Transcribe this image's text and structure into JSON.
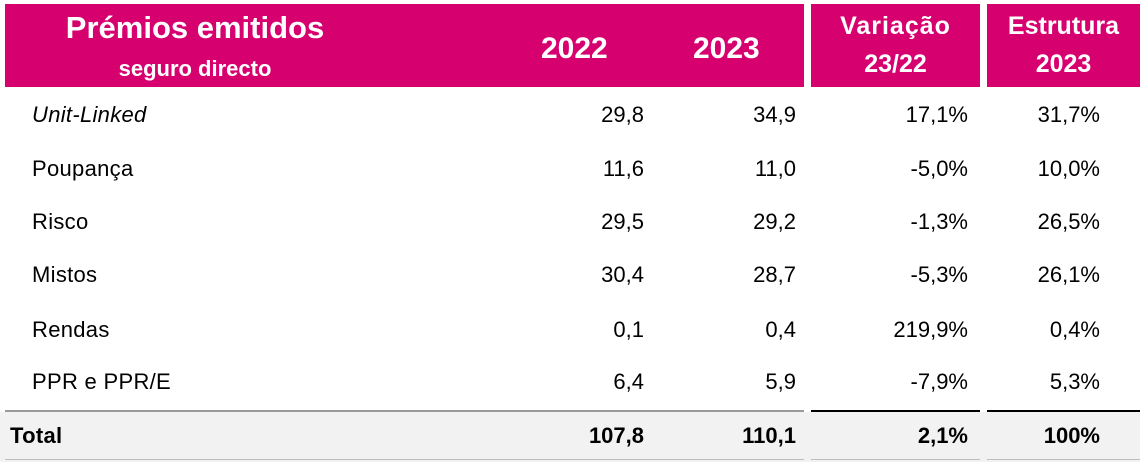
{
  "header": {
    "title_line1": "Prémios emitidos",
    "title_line2": "seguro directo",
    "year_2022": "2022",
    "year_2023": "2023",
    "variation_line1": "Variação",
    "variation_line2": "23/22",
    "structure_line1": "Estrutura",
    "structure_line2": "2023"
  },
  "rows": [
    {
      "label": "Unit-Linked",
      "v2022": "29,8",
      "v2023": "34,9",
      "variation": "17,1%",
      "structure": "31,7%"
    },
    {
      "label": "Poupança",
      "v2022": "11,6",
      "v2023": "11,0",
      "variation": "-5,0%",
      "structure": "10,0%"
    },
    {
      "label": "Risco",
      "v2022": "29,5",
      "v2023": "29,2",
      "variation": "-1,3%",
      "structure": "26,5%"
    },
    {
      "label": "Mistos",
      "v2022": "30,4",
      "v2023": "28,7",
      "variation": "-5,3%",
      "structure": "26,1%"
    },
    {
      "label": "Rendas",
      "v2022": "0,1",
      "v2023": "0,4",
      "variation": "219,9%",
      "structure": "0,4%"
    },
    {
      "label": "PPR e PPR/E",
      "v2022": "6,4",
      "v2023": "5,9",
      "variation": "-7,9%",
      "structure": "5,3%"
    }
  ],
  "total": {
    "label": "Total",
    "v2022": "107,8",
    "v2023": "110,1",
    "variation": "2,1%",
    "structure": "100%"
  },
  "colors": {
    "header_bg": "#d6006f",
    "header_text": "#ffffff",
    "total_bg": "#f2f2f2"
  }
}
